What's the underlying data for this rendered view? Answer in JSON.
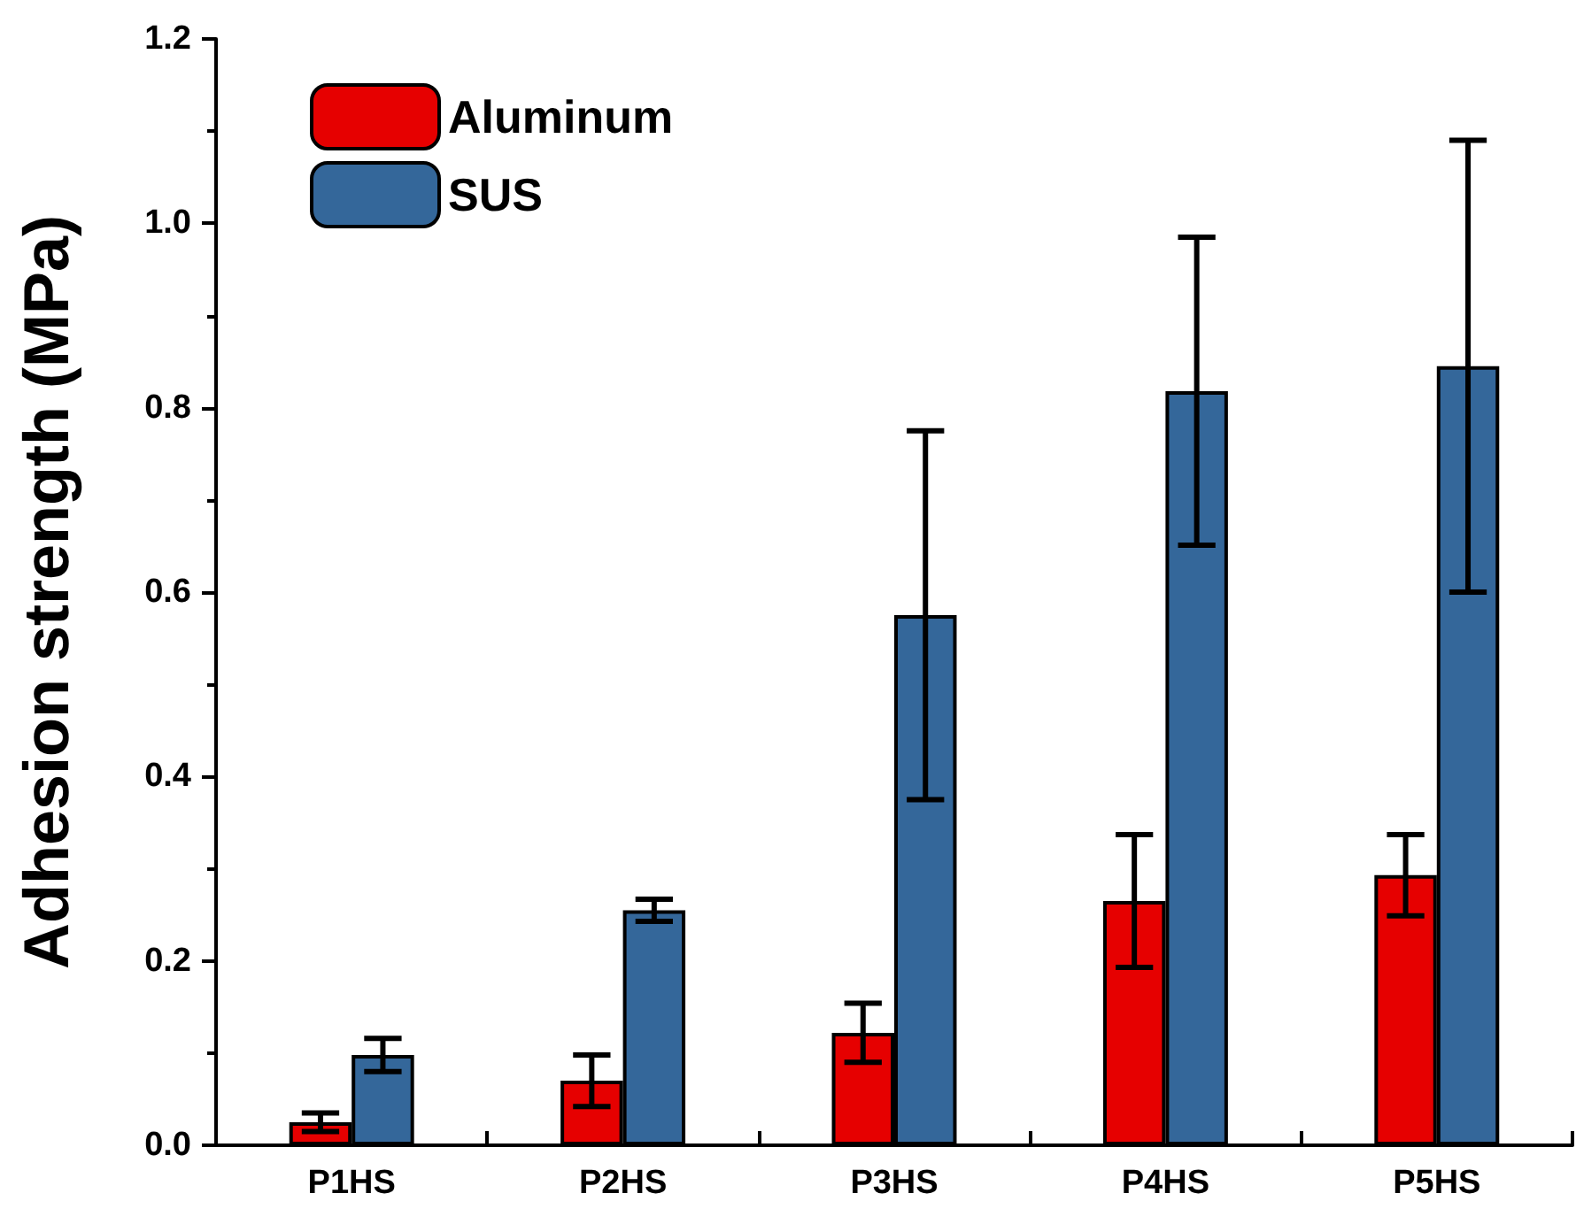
{
  "chart_data": {
    "type": "bar",
    "ylabel": "Adhesion strength (MPa)",
    "categories": [
      "P1HS",
      "P2HS",
      "P3HS",
      "P4HS",
      "P5HS"
    ],
    "series": [
      {
        "name": "Aluminum",
        "color": "#e60000",
        "values": [
          0.025,
          0.07,
          0.122,
          0.265,
          0.293
        ],
        "errors": [
          0.01,
          0.028,
          0.032,
          0.072,
          0.044
        ]
      },
      {
        "name": "SUS",
        "color": "#34679a",
        "values": [
          0.098,
          0.255,
          0.575,
          0.818,
          0.845
        ],
        "errors": [
          0.018,
          0.012,
          0.2,
          0.167,
          0.245
        ]
      }
    ],
    "ylim": [
      0,
      1.2
    ],
    "yticks": [
      {
        "value": 0,
        "label": "0.0"
      },
      {
        "value": 0.2,
        "label": "0.2"
      },
      {
        "value": 0.4,
        "label": "0.4"
      },
      {
        "value": 0.6,
        "label": "0.6"
      },
      {
        "value": 0.8,
        "label": "0.8"
      },
      {
        "value": 1.0,
        "label": "1.0"
      },
      {
        "value": 1.2,
        "label": "1.2"
      }
    ],
    "grid": false,
    "legend": "top left"
  }
}
